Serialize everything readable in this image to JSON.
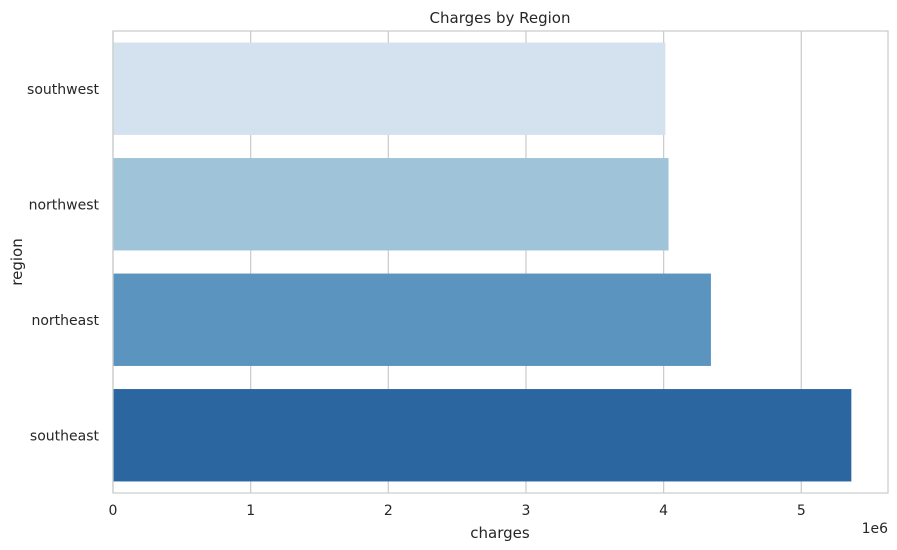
{
  "chart_data": {
    "type": "bar",
    "orientation": "horizontal",
    "title": "Charges by Region",
    "xlabel": "charges",
    "ylabel": "region",
    "x_offset_label": "1e6",
    "x_scale_factor": 1000000,
    "xlim": [
      0,
      5.63
    ],
    "xticks": [
      0,
      1,
      2,
      3,
      4,
      5
    ],
    "grid": true,
    "categories": [
      "southwest",
      "northwest",
      "northeast",
      "southeast"
    ],
    "values": [
      4012755,
      4035712,
      4343669,
      5363690
    ],
    "colors": [
      "#d4e2f0",
      "#9fc4d9",
      "#5b95bf",
      "#2b66a0"
    ]
  }
}
